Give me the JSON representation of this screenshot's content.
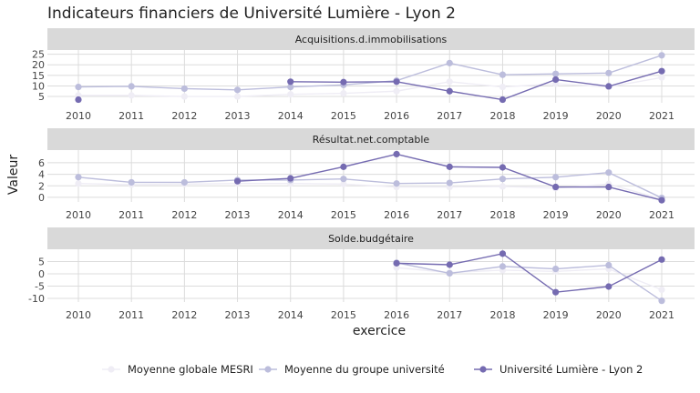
{
  "chart_data": {
    "type": "line",
    "title": "Indicateurs financiers de Université Lumière - Lyon 2",
    "xlabel": "exercice",
    "ylabel": "Valeur",
    "x": [
      2010,
      2011,
      2012,
      2013,
      2014,
      2015,
      2016,
      2017,
      2018,
      2019,
      2020,
      2021
    ],
    "legend": {
      "position": "bottom",
      "entries": [
        {
          "name": "Moyenne globale MESRI",
          "color": "#efedf5"
        },
        {
          "name": "Moyenne du groupe université",
          "color": "#bcbddc"
        },
        {
          "name": "Université Lumière - Lyon 2",
          "color": "#756bb1"
        }
      ]
    },
    "panels": [
      {
        "title": "Acquisitions.d.immobilisations",
        "ylim": [
          2,
          27
        ],
        "yticks": [
          5,
          10,
          15,
          20,
          25
        ],
        "series": [
          {
            "name": "Moyenne globale MESRI",
            "color": "#efedf5",
            "values": [
              5.5,
              5.5,
              5,
              5,
              6,
              6.5,
              7.5,
              12,
              9.5,
              11,
              9.5,
              14
            ]
          },
          {
            "name": "Moyenne du groupe université",
            "color": "#bcbddc",
            "values": [
              9.5,
              9.8,
              8.7,
              8.1,
              9.5,
              10.5,
              12.5,
              20.8,
              15.3,
              15.7,
              16.1,
              24.5
            ]
          },
          {
            "name": "Université Lumière - Lyon 2",
            "color": "#756bb1",
            "values": [
              3.5,
              null,
              null,
              null,
              12,
              11.8,
              12,
              7.5,
              3.5,
              13,
              9.8,
              17
            ]
          }
        ]
      },
      {
        "title": "Résultat.net.comptable",
        "ylim": [
          -0.8,
          8.2
        ],
        "yticks": [
          0,
          2,
          4,
          6
        ],
        "series": [
          {
            "name": "Moyenne globale MESRI",
            "color": "#efedf5",
            "values": [
              2.4,
              2.2,
              2.3,
              2.4,
              2.4,
              2.3,
              1.8,
              1.8,
              1.9,
              1.6,
              2.3,
              -0.3
            ]
          },
          {
            "name": "Moyenne du groupe université",
            "color": "#bcbddc",
            "values": [
              3.5,
              2.6,
              2.6,
              3.0,
              3.0,
              3.2,
              2.4,
              2.5,
              3.2,
              3.5,
              4.3,
              -0.1
            ]
          },
          {
            "name": "Université Lumière - Lyon 2",
            "color": "#756bb1",
            "values": [
              null,
              null,
              null,
              2.8,
              3.3,
              5.3,
              7.5,
              5.3,
              5.2,
              1.8,
              1.8,
              -0.5
            ]
          }
        ]
      },
      {
        "title": "Solde.budgétaire",
        "ylim": [
          -11.5,
          10
        ],
        "yticks": [
          -10,
          -5,
          0,
          5
        ],
        "series": [
          {
            "name": "Moyenne globale MESRI",
            "color": "#efedf5",
            "values": [
              null,
              null,
              null,
              null,
              null,
              null,
              2.5,
              0.5,
              1.5,
              1.0,
              2.0,
              -6.5
            ]
          },
          {
            "name": "Moyenne du groupe université",
            "color": "#bcbddc",
            "values": [
              null,
              null,
              null,
              null,
              null,
              null,
              4.5,
              0.2,
              3.0,
              2.0,
              3.5,
              -11.0
            ]
          },
          {
            "name": "Université Lumière - Lyon 2",
            "color": "#756bb1",
            "values": [
              null,
              null,
              null,
              null,
              null,
              null,
              4.3,
              3.7,
              8.2,
              -7.5,
              -5.2,
              5.8
            ]
          }
        ]
      }
    ]
  }
}
